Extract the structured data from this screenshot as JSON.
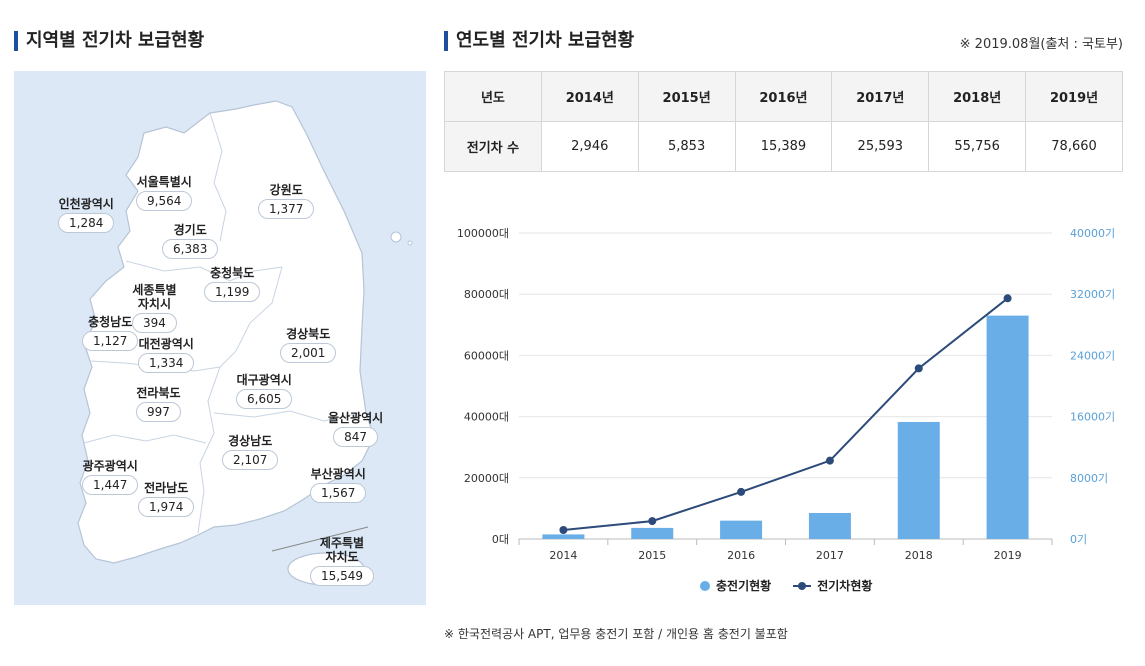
{
  "header": {
    "left_title": "지역별 전기차 보급현황",
    "right_title": "연도별 전기차 보급현황",
    "source": "※ 2019.08월(출처 : 국토부)"
  },
  "map": {
    "regions": [
      {
        "id": "seoul",
        "name": "서울특별시",
        "value": "9,564"
      },
      {
        "id": "incheon",
        "name": "인천광역시",
        "value": "1,284"
      },
      {
        "id": "gyeonggi",
        "name": "경기도",
        "value": "6,383"
      },
      {
        "id": "gangwon",
        "name": "강원도",
        "value": "1,377"
      },
      {
        "id": "chungbuk",
        "name": "충청북도",
        "value": "1,199"
      },
      {
        "id": "sejong",
        "name": "세종특별\n자치시",
        "value": "394"
      },
      {
        "id": "chungnam",
        "name": "충청남도",
        "value": "1,127"
      },
      {
        "id": "daejeon",
        "name": "대전광역시",
        "value": "1,334"
      },
      {
        "id": "gyeongbuk",
        "name": "경상북도",
        "value": "2,001"
      },
      {
        "id": "daegu",
        "name": "대구광역시",
        "value": "6,605"
      },
      {
        "id": "jeonbuk",
        "name": "전라북도",
        "value": "997"
      },
      {
        "id": "ulsan",
        "name": "울산광역시",
        "value": "847"
      },
      {
        "id": "gyeongnam",
        "name": "경상남도",
        "value": "2,107"
      },
      {
        "id": "gwangju",
        "name": "광주광역시",
        "value": "1,447"
      },
      {
        "id": "busan",
        "name": "부산광역시",
        "value": "1,567"
      },
      {
        "id": "jeonnam",
        "name": "전라남도",
        "value": "1,974"
      },
      {
        "id": "jeju",
        "name": "제주특별\n자치도",
        "value": "15,549"
      }
    ]
  },
  "table": {
    "year_header": "년도",
    "years": [
      "2014년",
      "2015년",
      "2016년",
      "2017년",
      "2018년",
      "2019년"
    ],
    "row_label": "전기차 수",
    "values": [
      "2,946",
      "5,853",
      "15,389",
      "25,593",
      "55,756",
      "78,660"
    ]
  },
  "chart_data": {
    "type": "bar",
    "categories": [
      "2014",
      "2015",
      "2016",
      "2017",
      "2018",
      "2019"
    ],
    "left_axis": {
      "ticks": [
        "0대",
        "20000대",
        "40000대",
        "60000대",
        "80000대",
        "100000대"
      ],
      "ylim": [
        0,
        100000
      ]
    },
    "right_axis": {
      "ticks": [
        "0기",
        "8000기",
        "16000기",
        "24000기",
        "32000기",
        "40000기"
      ],
      "ylim": [
        0,
        40000
      ]
    },
    "series": [
      {
        "name": "충전기현황",
        "type": "bar",
        "axis": "right",
        "color": "#6aaee8",
        "values": [
          600,
          1450,
          2400,
          3400,
          15300,
          29200
        ]
      },
      {
        "name": "전기차현황",
        "type": "line",
        "axis": "left",
        "color": "#2c4a7a",
        "values": [
          2946,
          5853,
          15389,
          25593,
          55756,
          78660
        ]
      }
    ],
    "grid": true,
    "legend": "bottom-center"
  },
  "footnote": "※ 한국전력공사 APT, 업무용 충전기 포함 / 개인용 홈 충전기 불포함"
}
